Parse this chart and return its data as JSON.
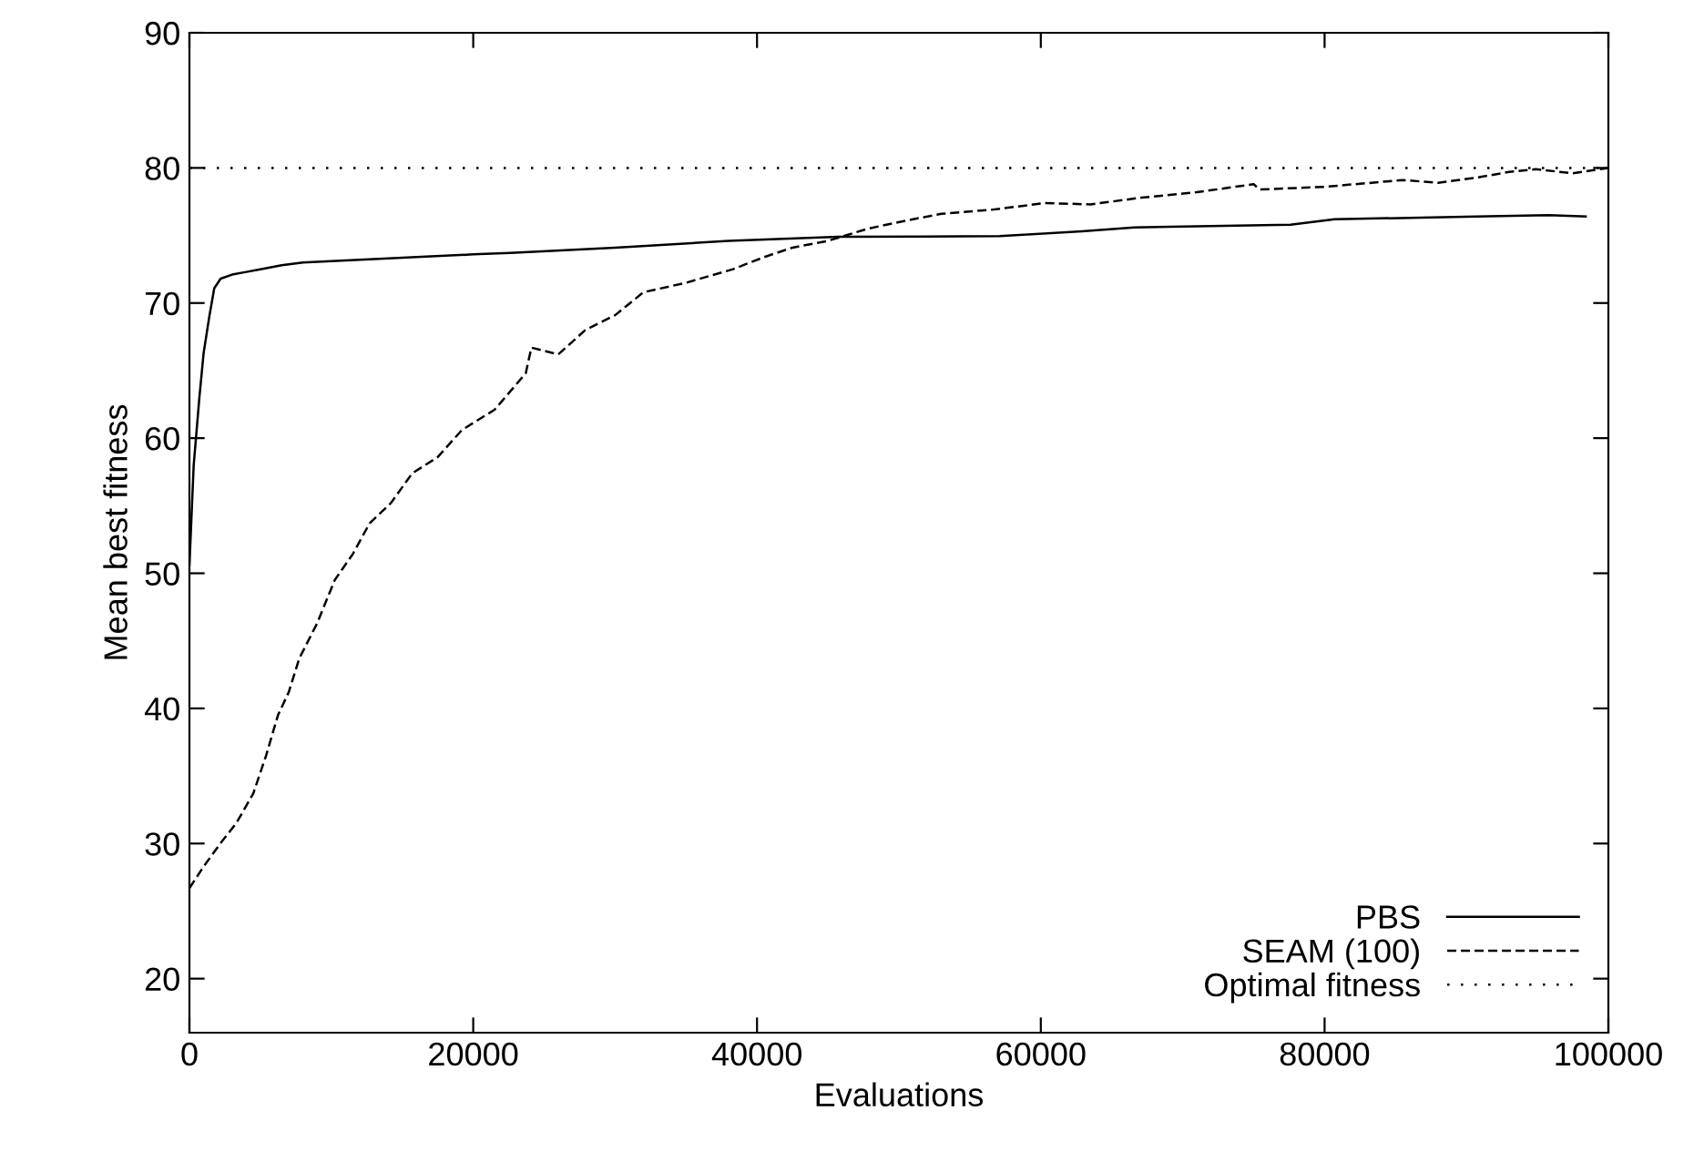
{
  "chart_data": {
    "type": "line",
    "xlabel": "Evaluations",
    "ylabel": "Mean best fitness",
    "xlim": [
      0,
      100000
    ],
    "ylim": [
      16,
      90
    ],
    "xticks": [
      0,
      20000,
      40000,
      60000,
      80000,
      100000
    ],
    "yticks": [
      20,
      30,
      40,
      50,
      60,
      70,
      80,
      90
    ],
    "grid": false,
    "legend": "bottom right",
    "marker": "none",
    "series": [
      {
        "name": "PBS",
        "color": "#000000",
        "line_style": "solid",
        "x": [
          0,
          300,
          700,
          1000,
          1400,
          1750,
          2200,
          3000,
          4000,
          5000,
          6500,
          8000,
          12000,
          16000,
          20000,
          22600,
          30000,
          38000,
          45700,
          57100,
          62900,
          66600,
          77600,
          80700,
          90700,
          95800,
          98400
        ],
        "values": [
          50.6,
          58,
          63,
          66.3,
          69,
          71.1,
          71.8,
          72.1,
          72.3,
          72.5,
          72.8,
          73,
          73.2,
          73.4,
          73.6,
          73.7,
          74.1,
          74.6,
          74.9,
          74.95,
          75.3,
          75.6,
          75.8,
          76.2,
          76.4,
          76.5,
          76.4
        ]
      },
      {
        "name": "SEAM (100)",
        "color": "#000000",
        "line_style": "dashed",
        "x": [
          0,
          1000,
          2250,
          3300,
          4500,
          5400,
          6240,
          7000,
          7740,
          9000,
          10240,
          11500,
          12700,
          14200,
          15700,
          17500,
          19200,
          21500,
          23700,
          24100,
          26000,
          27900,
          30000,
          32000,
          35000,
          38300,
          40500,
          42500,
          45000,
          47800,
          50500,
          53000,
          56500,
          60300,
          63500,
          67100,
          71000,
          75000,
          75400,
          80000,
          85500,
          88000,
          90800,
          93000,
          94900,
          97500,
          100000
        ],
        "values": [
          26.7,
          28.3,
          30.1,
          31.5,
          33.7,
          36.5,
          39.5,
          41.2,
          43.7,
          46.3,
          49.5,
          51.4,
          53.7,
          55.2,
          57.4,
          58.6,
          60.6,
          62.1,
          64.8,
          66.7,
          66.2,
          68.0,
          69.1,
          70.8,
          71.5,
          72.5,
          73.4,
          74.1,
          74.6,
          75.5,
          76.1,
          76.6,
          76.9,
          77.4,
          77.3,
          77.8,
          78.2,
          78.8,
          78.4,
          78.6,
          79.1,
          78.9,
          79.3,
          79.7,
          79.9,
          79.6,
          80
        ]
      },
      {
        "name": "Optimal fitness",
        "color": "#000000",
        "line_style": "dotted",
        "x": [
          0,
          100000
        ],
        "values": [
          80,
          80
        ]
      }
    ]
  }
}
